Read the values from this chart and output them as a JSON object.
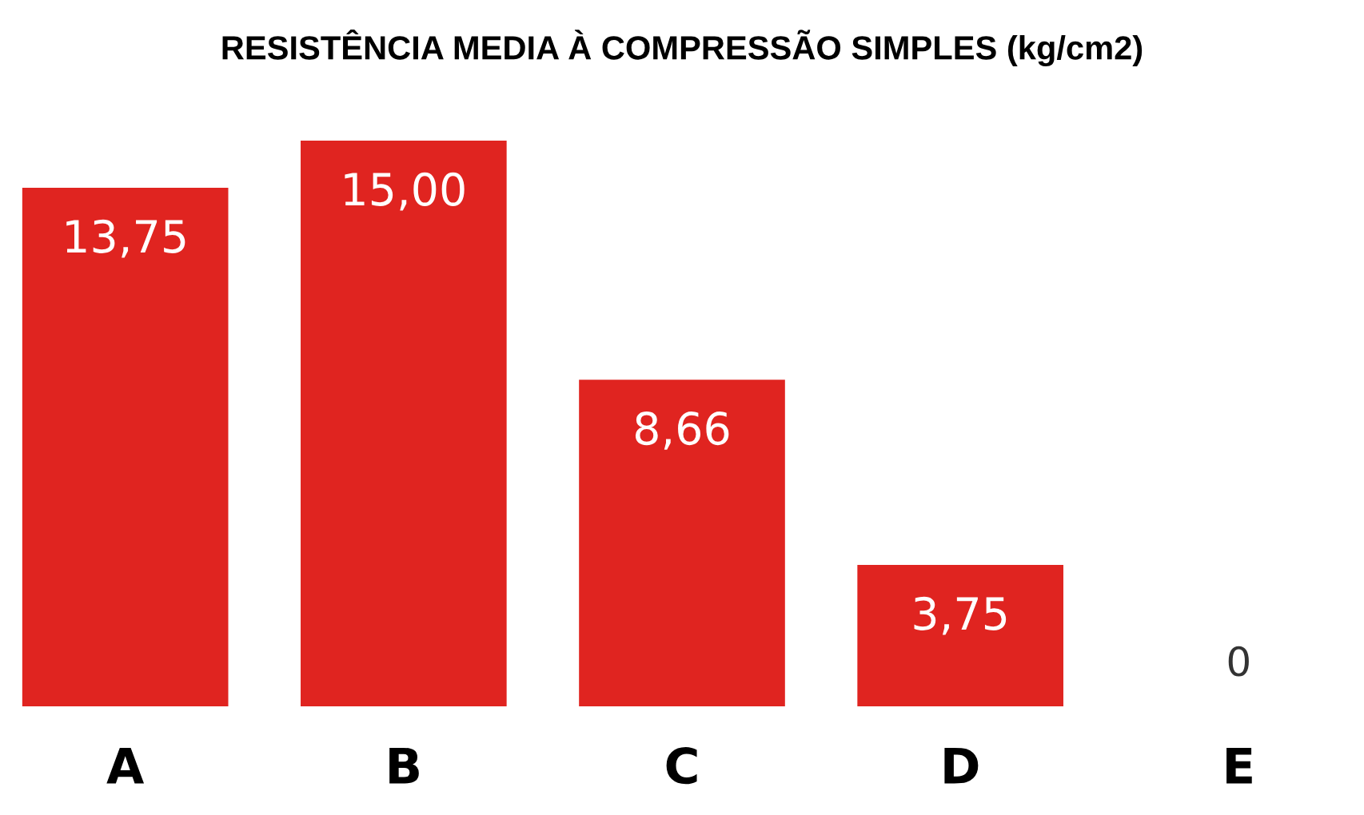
{
  "chart_data": {
    "type": "bar",
    "title": "RESISTÊNCIA MEDIA À COMPRESSÃO SIMPLES (kg/cm2)",
    "categories": [
      "A",
      "B",
      "C",
      "D",
      "E"
    ],
    "values": [
      13.75,
      15.0,
      8.66,
      3.75,
      0
    ],
    "color": "#e02420",
    "value_labels": [
      "13,75",
      "15,00",
      "8,66",
      "3,75",
      "0"
    ],
    "tick_labels": "x"
  }
}
